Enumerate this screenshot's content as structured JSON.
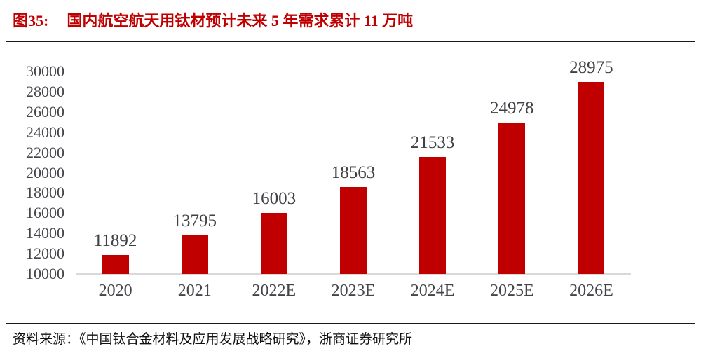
{
  "header": {
    "figure_label": "图35:",
    "title": "国内航空航天用钛材预计未来 5 年需求累计 11 万吨"
  },
  "chart_data": {
    "type": "bar",
    "title": "国内航空航天用钛材预计未来 5 年需求累计 11 万吨",
    "categories": [
      "2020",
      "2021",
      "2022E",
      "2023E",
      "2024E",
      "2025E",
      "2026E"
    ],
    "values": [
      11892,
      13795,
      16003,
      18563,
      21533,
      24978,
      28975
    ],
    "data_labels": [
      11892,
      13795,
      16003,
      18563,
      21533,
      24978,
      28975
    ],
    "xlabel": "",
    "ylabel": "",
    "ylim": [
      10000,
      30000
    ],
    "yticks": [
      10000,
      12000,
      14000,
      16000,
      18000,
      20000,
      22000,
      24000,
      26000,
      28000,
      30000
    ],
    "grid": false,
    "legend_position": "none",
    "bar_color": "#c00000",
    "axis_line_color": "#d9d9d9",
    "tick_label_color": "#44454a"
  },
  "footer": {
    "source": "资料来源：《中国钛合金材料及应用发展战略研究》，浙商证券研究所"
  },
  "colors": {
    "accent_red": "#c00000",
    "rule_black": "#1a1a1a",
    "label_gray": "#44454a",
    "axis_gray": "#d9d9d9"
  }
}
